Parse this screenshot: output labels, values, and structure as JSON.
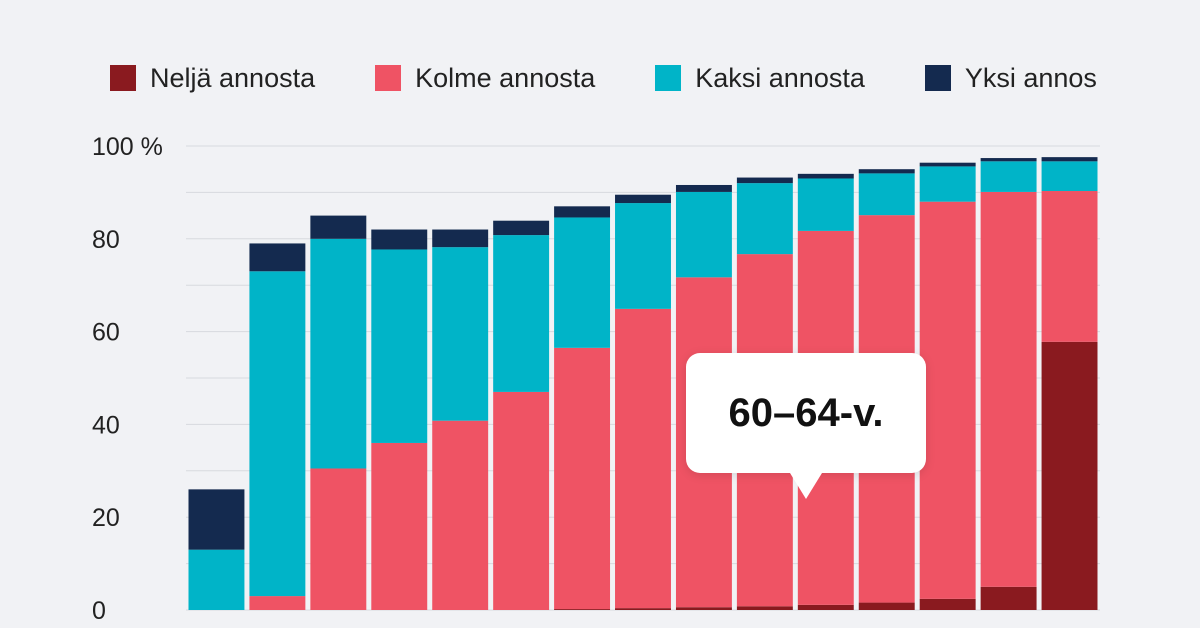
{
  "chart_data": {
    "type": "bar",
    "stacked": true,
    "title": "",
    "xlabel": "",
    "ylabel": "",
    "ylim": [
      0,
      100
    ],
    "yticks": [
      {
        "value": 0,
        "label": "0"
      },
      {
        "value": 20,
        "label": "20"
      },
      {
        "value": 40,
        "label": "40"
      },
      {
        "value": 60,
        "label": "60"
      },
      {
        "value": 80,
        "label": "80"
      },
      {
        "value": 100,
        "label": "100 %"
      }
    ],
    "grid": true,
    "legend_position": "top",
    "series": [
      {
        "name": "Neljä annosta",
        "color": "#8a1a1f",
        "values": [
          0,
          0,
          0,
          0,
          0,
          0,
          0.2,
          0.4,
          0.6,
          0.8,
          1.1,
          1.6,
          2.4,
          5.0,
          57.8
        ]
      },
      {
        "name": "Kolme annosta",
        "color": "#ef5364",
        "values": [
          0,
          3.0,
          30.5,
          36.0,
          40.8,
          47.0,
          56.3,
          64.5,
          71.1,
          75.9,
          80.6,
          83.5,
          85.6,
          85.1,
          32.5
        ]
      },
      {
        "name": "Kaksi annosta",
        "color": "#00b4c8",
        "values": [
          13.0,
          70.0,
          49.5,
          41.7,
          37.4,
          33.8,
          28.1,
          22.8,
          18.4,
          15.3,
          11.3,
          9.0,
          7.6,
          6.6,
          6.4
        ]
      },
      {
        "name": "Yksi annos",
        "color": "#142a4f",
        "values": [
          13.0,
          6.0,
          5.0,
          4.3,
          3.8,
          3.1,
          2.4,
          1.8,
          1.5,
          1.2,
          1.0,
          0.9,
          0.8,
          0.7,
          0.9
        ]
      }
    ],
    "tooltip": "60–64-v."
  }
}
